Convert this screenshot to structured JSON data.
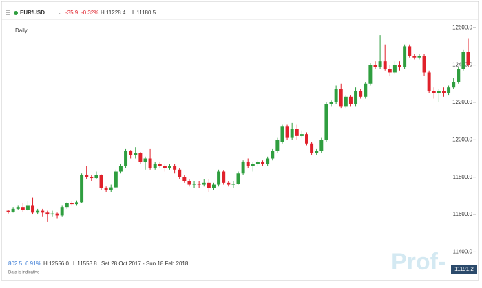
{
  "header": {
    "symbol": "EUR/USD",
    "change": "-35.9",
    "change_pct": "-0.32%",
    "high": "H 11228.4",
    "low": "L 11180.5"
  },
  "footer": {
    "range_change": "802.5",
    "range_pct": "6.91%",
    "range_high": "H 12556.0",
    "range_low": "L 11553.8",
    "period": "Sat 28 Oct 2017 - Sun 18 Feb 2018",
    "note": "Data is indicative",
    "last_price": "11191.2",
    "watermark": "Prof-"
  },
  "chart_data": {
    "type": "candlestick",
    "title": "Daily",
    "up_color": "#2f9e3f",
    "down_color": "#e0212b",
    "ylim": [
      11350,
      12645
    ],
    "yticks": [
      {
        "value": 11400,
        "label": "11400.0"
      },
      {
        "value": 11600,
        "label": "11600.0"
      },
      {
        "value": 11800,
        "label": "11800.0"
      },
      {
        "value": 12000,
        "label": "12000.0"
      },
      {
        "value": 12200,
        "label": "12200.0"
      },
      {
        "value": 12400,
        "label": "12400.0"
      },
      {
        "value": 12600,
        "label": "12600.0"
      }
    ],
    "open": [
      11620,
      11615,
      11630,
      11640,
      11625,
      11650,
      11610,
      11620,
      11610,
      11600,
      11605,
      11595,
      11640,
      11660,
      11655,
      11665,
      11810,
      11800,
      11795,
      11810,
      11740,
      11730,
      11745,
      11830,
      11860,
      11940,
      11920,
      11930,
      11880,
      11900,
      11850,
      11870,
      11860,
      11850,
      11860,
      11840,
      11800,
      11780,
      11760,
      11765,
      11760,
      11770,
      11740,
      11760,
      11830,
      11770,
      11760,
      11765,
      11820,
      11880,
      11860,
      11870,
      11880,
      11870,
      11900,
      11940,
      11990,
      12070,
      12010,
      12060,
      12020,
      12030,
      11980,
      11930,
      11940,
      12000,
      12190,
      12200,
      12270,
      12180,
      12230,
      12190,
      12260,
      12230,
      12300,
      12400,
      12390,
      12420,
      12380,
      12360,
      12400,
      12390,
      12500,
      12450,
      12440,
      12450,
      12360,
      12260,
      12250,
      12260,
      12250,
      12280,
      12310,
      12380,
      12470
    ],
    "high": [
      11625,
      11640,
      11650,
      11660,
      11670,
      11690,
      11630,
      11630,
      11620,
      11620,
      11610,
      11650,
      11665,
      11670,
      11675,
      11820,
      11860,
      11810,
      11830,
      11815,
      11750,
      11760,
      11840,
      11870,
      11950,
      11945,
      11960,
      11935,
      11910,
      11950,
      11880,
      11880,
      11870,
      11870,
      11870,
      11850,
      11810,
      11790,
      11780,
      11780,
      11790,
      11790,
      11770,
      11840,
      11835,
      11780,
      11780,
      11830,
      11890,
      11900,
      11880,
      11890,
      11890,
      11910,
      11950,
      12010,
      12080,
      12080,
      12090,
      12080,
      12050,
      12040,
      11990,
      11950,
      12010,
      12200,
      12210,
      12290,
      12300,
      12240,
      12240,
      12280,
      12270,
      12310,
      12410,
      12420,
      12560,
      12510,
      12400,
      12420,
      12420,
      12510,
      12510,
      12460,
      12460,
      12460,
      12370,
      12280,
      12270,
      12280,
      12290,
      12330,
      12390,
      12480,
      12540
    ],
    "low": [
      11605,
      11610,
      11625,
      11615,
      11620,
      11600,
      11600,
      11590,
      11560,
      11590,
      11580,
      11590,
      11630,
      11650,
      11650,
      11660,
      11790,
      11780,
      11790,
      11730,
      11720,
      11720,
      11740,
      11820,
      11850,
      11900,
      11900,
      11870,
      11840,
      11840,
      11840,
      11850,
      11830,
      11840,
      11820,
      11790,
      11770,
      11750,
      11740,
      11740,
      11750,
      11720,
      11730,
      11750,
      11760,
      11750,
      11740,
      11760,
      11810,
      11850,
      11830,
      11860,
      11860,
      11860,
      11890,
      11930,
      11980,
      12000,
      12000,
      12000,
      12010,
      11970,
      11920,
      11920,
      11930,
      11990,
      12180,
      12190,
      12170,
      12170,
      12180,
      12180,
      12220,
      12220,
      12290,
      12380,
      12380,
      12370,
      12340,
      12350,
      12370,
      12380,
      12440,
      12430,
      12430,
      12340,
      12250,
      12220,
      12200,
      12230,
      12240,
      12270,
      12300,
      12370,
      12390
    ],
    "close": [
      11615,
      11630,
      11640,
      11625,
      11650,
      11610,
      11620,
      11610,
      11600,
      11605,
      11595,
      11640,
      11660,
      11655,
      11665,
      11810,
      11800,
      11795,
      11810,
      11740,
      11730,
      11745,
      11830,
      11860,
      11940,
      11920,
      11930,
      11880,
      11900,
      11850,
      11870,
      11860,
      11850,
      11860,
      11840,
      11800,
      11780,
      11760,
      11765,
      11760,
      11770,
      11740,
      11760,
      11830,
      11770,
      11760,
      11765,
      11820,
      11880,
      11860,
      11870,
      11880,
      11870,
      11900,
      11940,
      12000,
      12070,
      12010,
      12060,
      12020,
      12030,
      11980,
      11930,
      11940,
      12000,
      12190,
      12200,
      12270,
      12180,
      12230,
      12190,
      12260,
      12230,
      12300,
      12400,
      12390,
      12420,
      12380,
      12360,
      12400,
      12390,
      12500,
      12450,
      12440,
      12450,
      12360,
      12260,
      12250,
      12260,
      12250,
      12280,
      12310,
      12380,
      12470,
      12400
    ]
  }
}
